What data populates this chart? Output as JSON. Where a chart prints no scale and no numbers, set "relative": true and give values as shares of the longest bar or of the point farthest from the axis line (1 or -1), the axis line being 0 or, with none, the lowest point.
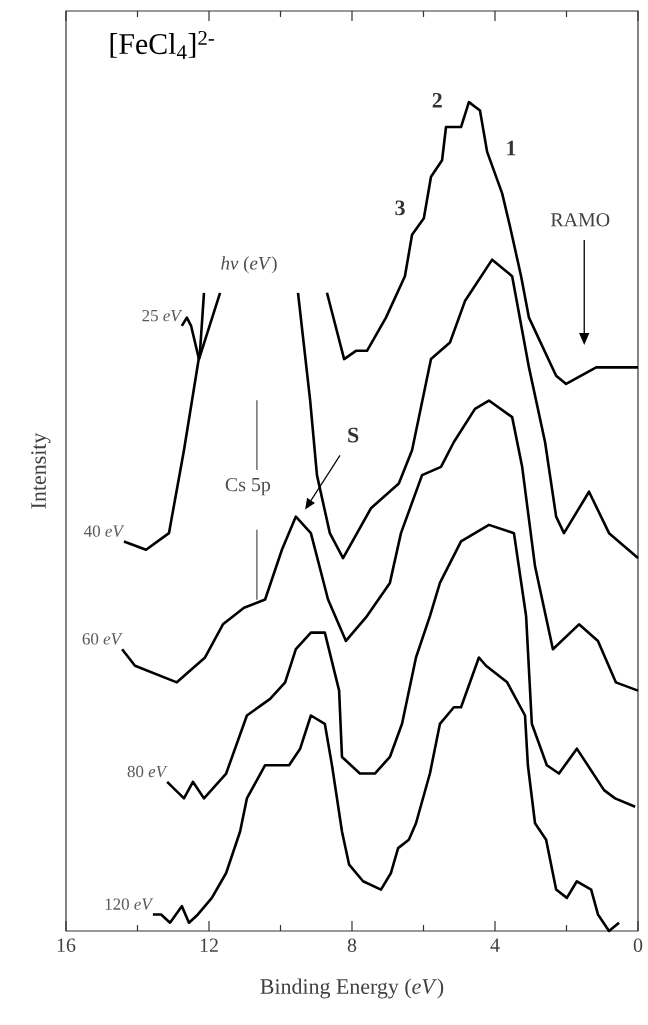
{
  "chart_data": {
    "type": "line",
    "relative": true,
    "title": "[FeCl$_{4}$]$^{2-}$",
    "xlabel": "Binding Energy (*eV*)",
    "ylabel": "Intensity",
    "xlim": [
      16,
      0
    ],
    "xticks": [
      16,
      {
        "value": 14,
        "label": null
      },
      12,
      {
        "value": 10,
        "label": null
      },
      8,
      {
        "value": 6,
        "label": null
      },
      4,
      {
        "value": 2,
        "label": null
      },
      0
    ],
    "tick_labels": "x",
    "annotations": [
      "1",
      "2",
      "3",
      "RAMO",
      "S",
      "*hν* (*eV*)"
    ],
    "ref_lines": [
      {
        "axis": "x",
        "value": 10.66,
        "label": "Cs 5p",
        "color": "#4c4c4c"
      }
    ],
    "series": [
      {
        "name": "25 *eV*",
        "color": "#000000",
        "x": [
          12.76,
          12.62,
          12.5,
          12.28,
          11.69,
          10.2,
          8.7,
          8.22,
          7.89,
          7.58,
          7.05,
          6.52,
          6.32,
          5.99,
          5.79,
          5.48,
          5.37,
          4.95,
          4.73,
          4.42,
          4.22,
          3.8,
          3.58,
          3.27,
          3.05,
          2.29,
          2.01,
          1.17,
          0.0
        ],
        "values": [
          0.73,
          0.74,
          0.73,
          0.69,
          0.77,
          null,
          0.77,
          0.69,
          0.7,
          0.7,
          0.74,
          0.79,
          0.84,
          0.86,
          0.91,
          0.93,
          0.97,
          0.97,
          1.0,
          0.99,
          0.94,
          0.89,
          0.85,
          0.79,
          0.74,
          0.67,
          0.66,
          0.68,
          0.68
        ]
      },
      {
        "name": "40 *eV*",
        "color": "#000000",
        "x": [
          14.38,
          13.76,
          13.12,
          12.7,
          12.25,
          12.14,
          10.8,
          9.51,
          9.17,
          8.98,
          8.62,
          8.25,
          7.47,
          6.69,
          6.32,
          5.79,
          5.26,
          4.84,
          4.08,
          3.52,
          3.05,
          2.6,
          2.29,
          2.07,
          1.37,
          0.81,
          0.0
        ],
        "values": [
          0.47,
          0.46,
          0.48,
          0.58,
          0.7,
          0.77,
          null,
          0.77,
          0.64,
          0.55,
          0.48,
          0.45,
          0.51,
          0.54,
          0.58,
          0.69,
          0.71,
          0.76,
          0.81,
          0.79,
          0.68,
          0.59,
          0.5,
          0.48,
          0.53,
          0.48,
          0.45
        ]
      },
      {
        "name": "60 *eV*",
        "color": "#000000",
        "x": [
          14.43,
          14.07,
          12.9,
          12.11,
          11.61,
          11.02,
          10.43,
          9.96,
          9.57,
          9.15,
          8.67,
          8.17,
          7.58,
          6.94,
          6.63,
          6.04,
          5.51,
          5.15,
          4.56,
          4.17,
          3.52,
          3.24,
          2.88,
          2.38,
          1.65,
          1.12,
          0.62,
          0.0
        ],
        "values": [
          0.34,
          0.32,
          0.3,
          0.33,
          0.37,
          0.39,
          0.4,
          0.46,
          0.5,
          0.48,
          0.4,
          0.35,
          0.38,
          0.42,
          0.48,
          0.55,
          0.56,
          0.59,
          0.63,
          0.64,
          0.62,
          0.56,
          0.44,
          0.34,
          0.37,
          0.35,
          0.3,
          0.29
        ]
      },
      {
        "name": "80 *eV*",
        "color": "#000000",
        "x": [
          13.17,
          12.7,
          12.45,
          12.14,
          11.52,
          10.94,
          10.29,
          9.87,
          9.57,
          9.15,
          8.76,
          8.36,
          8.28,
          7.78,
          7.36,
          6.94,
          6.6,
          6.21,
          5.82,
          5.54,
          4.95,
          4.17,
          3.47,
          3.13,
          2.97,
          2.55,
          2.21,
          1.71,
          0.95,
          0.64,
          0.08
        ],
        "values": [
          0.18,
          0.16,
          0.18,
          0.16,
          0.19,
          0.26,
          0.28,
          0.3,
          0.34,
          0.36,
          0.36,
          0.29,
          0.21,
          0.19,
          0.19,
          0.21,
          0.25,
          0.33,
          0.38,
          0.42,
          0.47,
          0.49,
          0.48,
          0.38,
          0.25,
          0.2,
          0.19,
          0.22,
          0.17,
          0.16,
          0.15
        ]
      },
      {
        "name": "120 *eV*",
        "color": "#000000",
        "x": [
          13.57,
          13.34,
          13.09,
          12.76,
          12.56,
          12.31,
          11.92,
          11.52,
          11.13,
          10.94,
          10.43,
          9.76,
          9.45,
          9.15,
          8.76,
          8.56,
          8.28,
          8.08,
          7.69,
          7.19,
          6.91,
          6.71,
          6.41,
          6.21,
          5.82,
          5.54,
          5.15,
          4.95,
          4.45,
          4.25,
          3.66,
          3.16,
          3.08,
          2.88,
          2.57,
          2.29,
          1.99,
          1.71,
          1.31,
          1.12,
          0.81,
          0.53
        ],
        "values": [
          0.02,
          0.02,
          0.01,
          0.03,
          0.01,
          0.02,
          0.04,
          0.07,
          0.12,
          0.16,
          0.2,
          0.2,
          0.22,
          0.26,
          0.25,
          0.2,
          0.12,
          0.08,
          0.06,
          0.05,
          0.07,
          0.1,
          0.11,
          0.13,
          0.19,
          0.25,
          0.27,
          0.27,
          0.33,
          0.32,
          0.3,
          0.26,
          0.2,
          0.13,
          0.11,
          0.05,
          0.04,
          0.06,
          0.05,
          0.02,
          0.0,
          0.01
        ]
      }
    ]
  }
}
